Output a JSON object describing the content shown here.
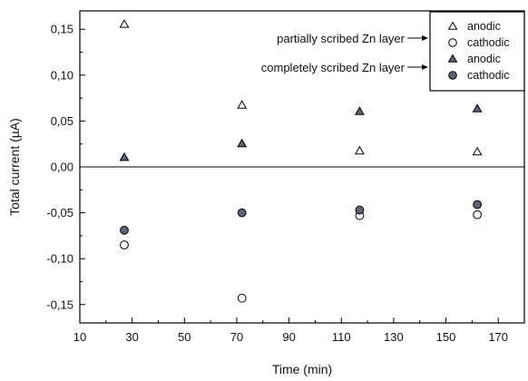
{
  "chart_data": {
    "type": "scatter",
    "xlabel": "Time (min)",
    "ylabel": "Total current (µA)",
    "xlim": [
      10,
      180
    ],
    "ylim": [
      -0.17,
      0.17
    ],
    "x_ticks": [
      10,
      30,
      50,
      70,
      90,
      110,
      130,
      150,
      170
    ],
    "y_ticks": [
      0.15,
      0.1,
      0.05,
      0.0,
      -0.05,
      -0.1,
      -0.15
    ],
    "x_tick_labels": [
      "10",
      "30",
      "50",
      "70",
      "90",
      "110",
      "130",
      "150",
      "170"
    ],
    "y_tick_labels": [
      "0,15",
      "0,10",
      "0,05",
      "0,00",
      "-0,05",
      "-0,10",
      "-0,15"
    ],
    "zero_line": true,
    "grid": false,
    "legend_position": "top-right",
    "legend_groups": [
      {
        "label": "partially scribed Zn layer",
        "series": [
          0,
          1
        ]
      },
      {
        "label": "completely scribed Zn layer",
        "series": [
          2,
          3
        ]
      }
    ],
    "series": [
      {
        "name": "anodic",
        "marker": "triangle",
        "filled": false,
        "color": "#000000",
        "x": [
          27,
          72,
          117,
          162
        ],
        "y": [
          0.155,
          0.067,
          0.017,
          0.016
        ]
      },
      {
        "name": "cathodic",
        "marker": "circle",
        "filled": false,
        "color": "#000000",
        "x": [
          27,
          72,
          117,
          162
        ],
        "y": [
          -0.085,
          -0.143,
          -0.053,
          -0.052
        ]
      },
      {
        "name": "anodic",
        "marker": "triangle",
        "filled": true,
        "color": "#5d6478",
        "x": [
          27,
          72,
          117,
          162
        ],
        "y": [
          0.01,
          0.025,
          0.06,
          0.063
        ]
      },
      {
        "name": "cathodic",
        "marker": "circle",
        "filled": true,
        "color": "#5d6478",
        "x": [
          27,
          72,
          117,
          162
        ],
        "y": [
          -0.069,
          -0.05,
          -0.047,
          -0.041
        ]
      }
    ]
  }
}
